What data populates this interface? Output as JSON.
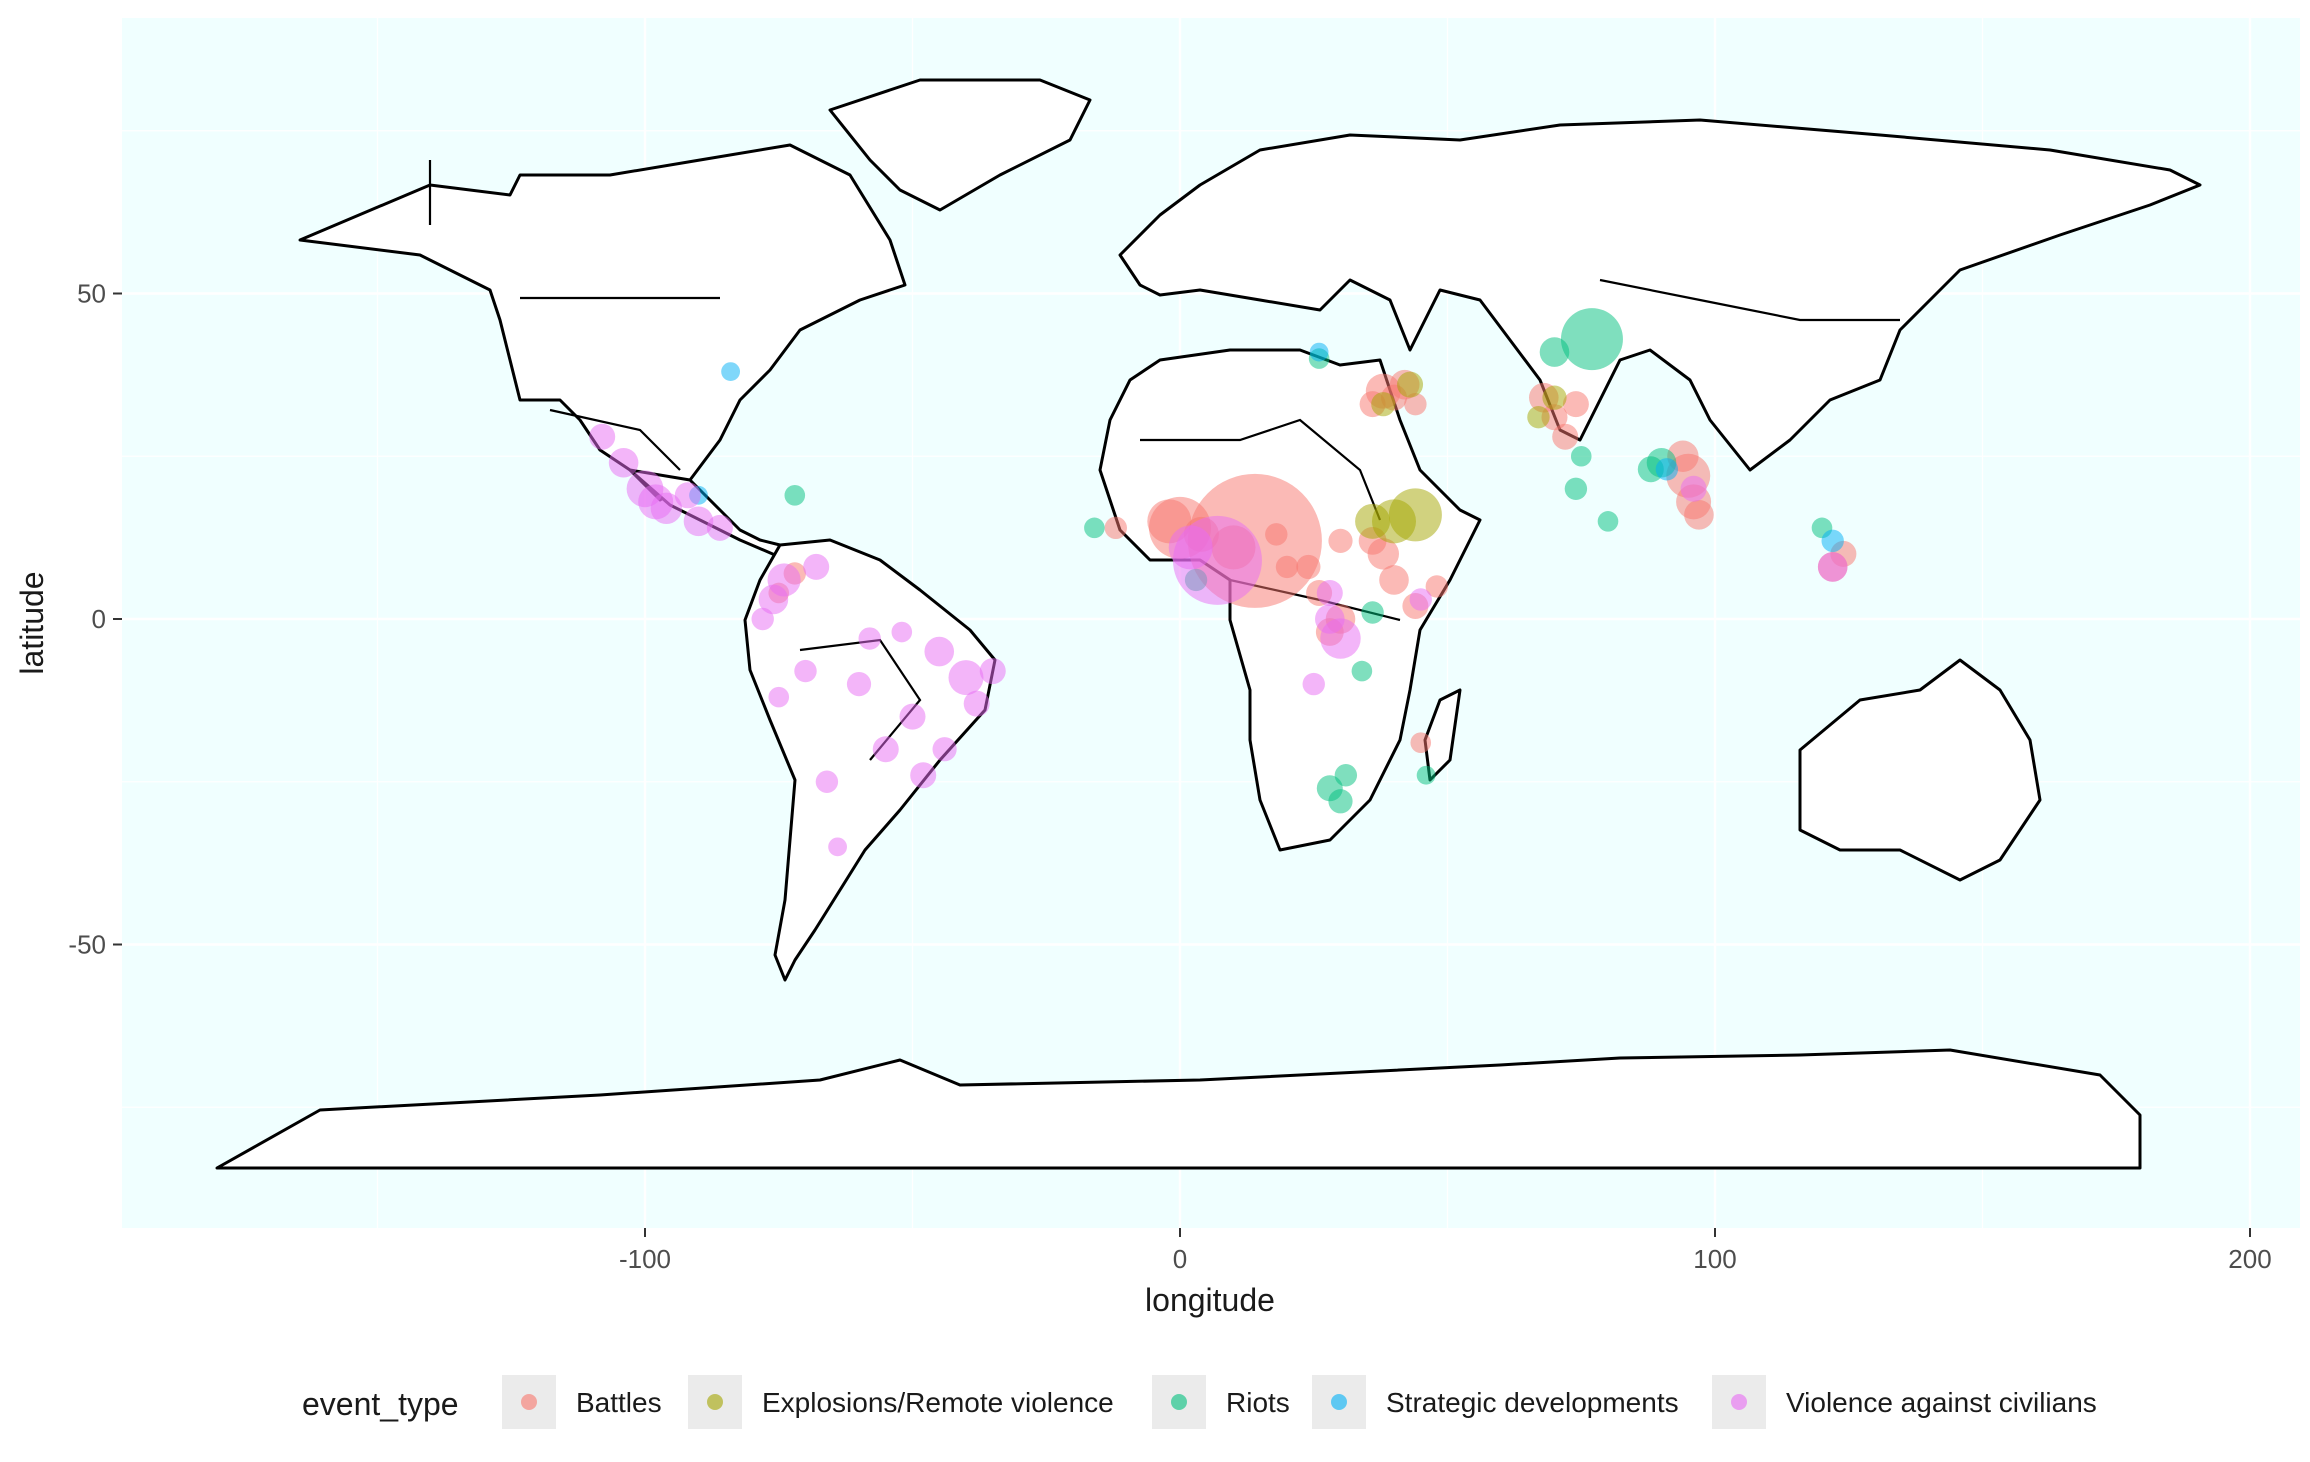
{
  "chart_data": {
    "type": "scatter",
    "subtype": "map",
    "xlabel": "longitude",
    "ylabel": "latitude",
    "xlim": [
      -200,
      210
    ],
    "ylim": [
      -93,
      92
    ],
    "x_ticks": [
      -100,
      0,
      100,
      200
    ],
    "x_tick_labels": [
      "-100",
      "0",
      "100",
      "200"
    ],
    "y_ticks": [
      50,
      0,
      -50
    ],
    "y_tick_labels": [
      "50",
      "0",
      "-50"
    ],
    "grid": true,
    "panel_background": "#F0FFFF",
    "legend": {
      "title": "event_type",
      "position": "bottom",
      "entries": [
        {
          "label": "Battles",
          "color": "#F8766D"
        },
        {
          "label": "Explosions/Remote violence",
          "color": "#A3A500"
        },
        {
          "label": "Riots",
          "color": "#00BF7D"
        },
        {
          "label": "Strategic developments",
          "color": "#00B0F6"
        },
        {
          "label": "Violence against civilians",
          "color": "#E76BF3"
        }
      ]
    },
    "series": [
      {
        "name": "Battles",
        "color": "#F8766D",
        "points": [
          [
            14,
            12,
            7
          ],
          [
            0,
            14,
            3
          ],
          [
            -2,
            15,
            2
          ],
          [
            4,
            13,
            1.5
          ],
          [
            10,
            11,
            2
          ],
          [
            38,
            35,
            1.5
          ],
          [
            42,
            36,
            1.2
          ],
          [
            36,
            33,
            1
          ],
          [
            40,
            34,
            1
          ],
          [
            44,
            33,
            0.8
          ],
          [
            68,
            34,
            1.2
          ],
          [
            70,
            31,
            1
          ],
          [
            72,
            28,
            1
          ],
          [
            74,
            33,
            1
          ],
          [
            95,
            22,
            2
          ],
          [
            96,
            18,
            1.5
          ],
          [
            97,
            16,
            1.2
          ],
          [
            94,
            25,
            1.3
          ],
          [
            38,
            10,
            1.3
          ],
          [
            40,
            6,
            1.2
          ],
          [
            36,
            12,
            1.1
          ],
          [
            44,
            2,
            1
          ],
          [
            30,
            0,
            1.2
          ],
          [
            28,
            -2,
            1.1
          ],
          [
            26,
            4,
            1
          ],
          [
            20,
            8,
            0.8
          ],
          [
            122,
            8,
            1.2
          ],
          [
            124,
            10,
            1
          ],
          [
            30,
            12,
            0.9
          ],
          [
            18,
            13,
            0.8
          ],
          [
            -12,
            14,
            0.8
          ],
          [
            -72,
            7,
            0.8
          ],
          [
            -75,
            4,
            0.7
          ],
          [
            48,
            5,
            0.8
          ],
          [
            45,
            -19,
            0.7
          ],
          [
            24,
            8,
            0.9
          ]
        ]
      },
      {
        "name": "Explosions/Remote violence",
        "color": "#A3A500",
        "points": [
          [
            44,
            16,
            2.5
          ],
          [
            40,
            15,
            2
          ],
          [
            36,
            15,
            1.5
          ],
          [
            43,
            36,
            1
          ],
          [
            38,
            33,
            0.9
          ],
          [
            70,
            34,
            0.9
          ],
          [
            67,
            31,
            0.8
          ]
        ]
      },
      {
        "name": "Riots",
        "color": "#00BF7D",
        "points": [
          [
            77,
            43,
            3
          ],
          [
            70,
            41,
            1.2
          ],
          [
            90,
            24,
            1.2
          ],
          [
            88,
            23,
            1
          ],
          [
            28,
            -26,
            1
          ],
          [
            30,
            -28,
            0.9
          ],
          [
            31,
            -24,
            0.8
          ],
          [
            36,
            1,
            0.8
          ],
          [
            -72,
            19,
            0.7
          ],
          [
            74,
            20,
            0.8
          ],
          [
            80,
            15,
            0.7
          ],
          [
            75,
            25,
            0.7
          ],
          [
            3,
            6,
            0.8
          ],
          [
            -16,
            14,
            0.7
          ],
          [
            120,
            14,
            0.7
          ],
          [
            26,
            40,
            0.7
          ],
          [
            46,
            -24,
            0.6
          ],
          [
            34,
            -8,
            0.7
          ]
        ]
      },
      {
        "name": "Strategic developments",
        "color": "#00B0F6",
        "points": [
          [
            -84,
            38,
            0.6
          ],
          [
            26,
            41,
            0.6
          ],
          [
            122,
            12,
            0.8
          ],
          [
            91,
            23,
            0.8
          ],
          [
            -90,
            19,
            0.6
          ]
        ]
      },
      {
        "name": "Violence against civilians",
        "color": "#E76BF3",
        "points": [
          [
            7,
            9,
            4.5
          ],
          [
            2,
            11,
            2
          ],
          [
            30,
            -3,
            1.8
          ],
          [
            28,
            0,
            1.2
          ],
          [
            -100,
            20,
            1.6
          ],
          [
            -98,
            18,
            1.5
          ],
          [
            -104,
            24,
            1.2
          ],
          [
            -108,
            28,
            1
          ],
          [
            -96,
            17,
            1.3
          ],
          [
            -90,
            15,
            1.2
          ],
          [
            -86,
            14,
            1
          ],
          [
            -92,
            19,
            1
          ],
          [
            -74,
            6,
            1.4
          ],
          [
            -76,
            3,
            1.2
          ],
          [
            -68,
            8,
            1
          ],
          [
            -40,
            -9,
            1.5
          ],
          [
            -45,
            -5,
            1.2
          ],
          [
            -50,
            -15,
            1
          ],
          [
            -55,
            -20,
            1
          ],
          [
            -48,
            -24,
            1
          ],
          [
            -60,
            -10,
            0.9
          ],
          [
            -70,
            -8,
            0.8
          ],
          [
            -66,
            -25,
            0.8
          ],
          [
            -58,
            -3,
            0.8
          ],
          [
            -38,
            -13,
            1
          ],
          [
            -44,
            -20,
            0.9
          ],
          [
            -75,
            -12,
            0.7
          ],
          [
            -78,
            0,
            0.8
          ],
          [
            122,
            8,
            1.2
          ],
          [
            96,
            20,
            1
          ],
          [
            28,
            4,
            1
          ],
          [
            25,
            -10,
            0.8
          ],
          [
            45,
            3,
            0.8
          ],
          [
            -64,
            -35,
            0.6
          ],
          [
            -35,
            -8,
            1
          ],
          [
            -52,
            -2,
            0.7
          ]
        ]
      }
    ]
  }
}
